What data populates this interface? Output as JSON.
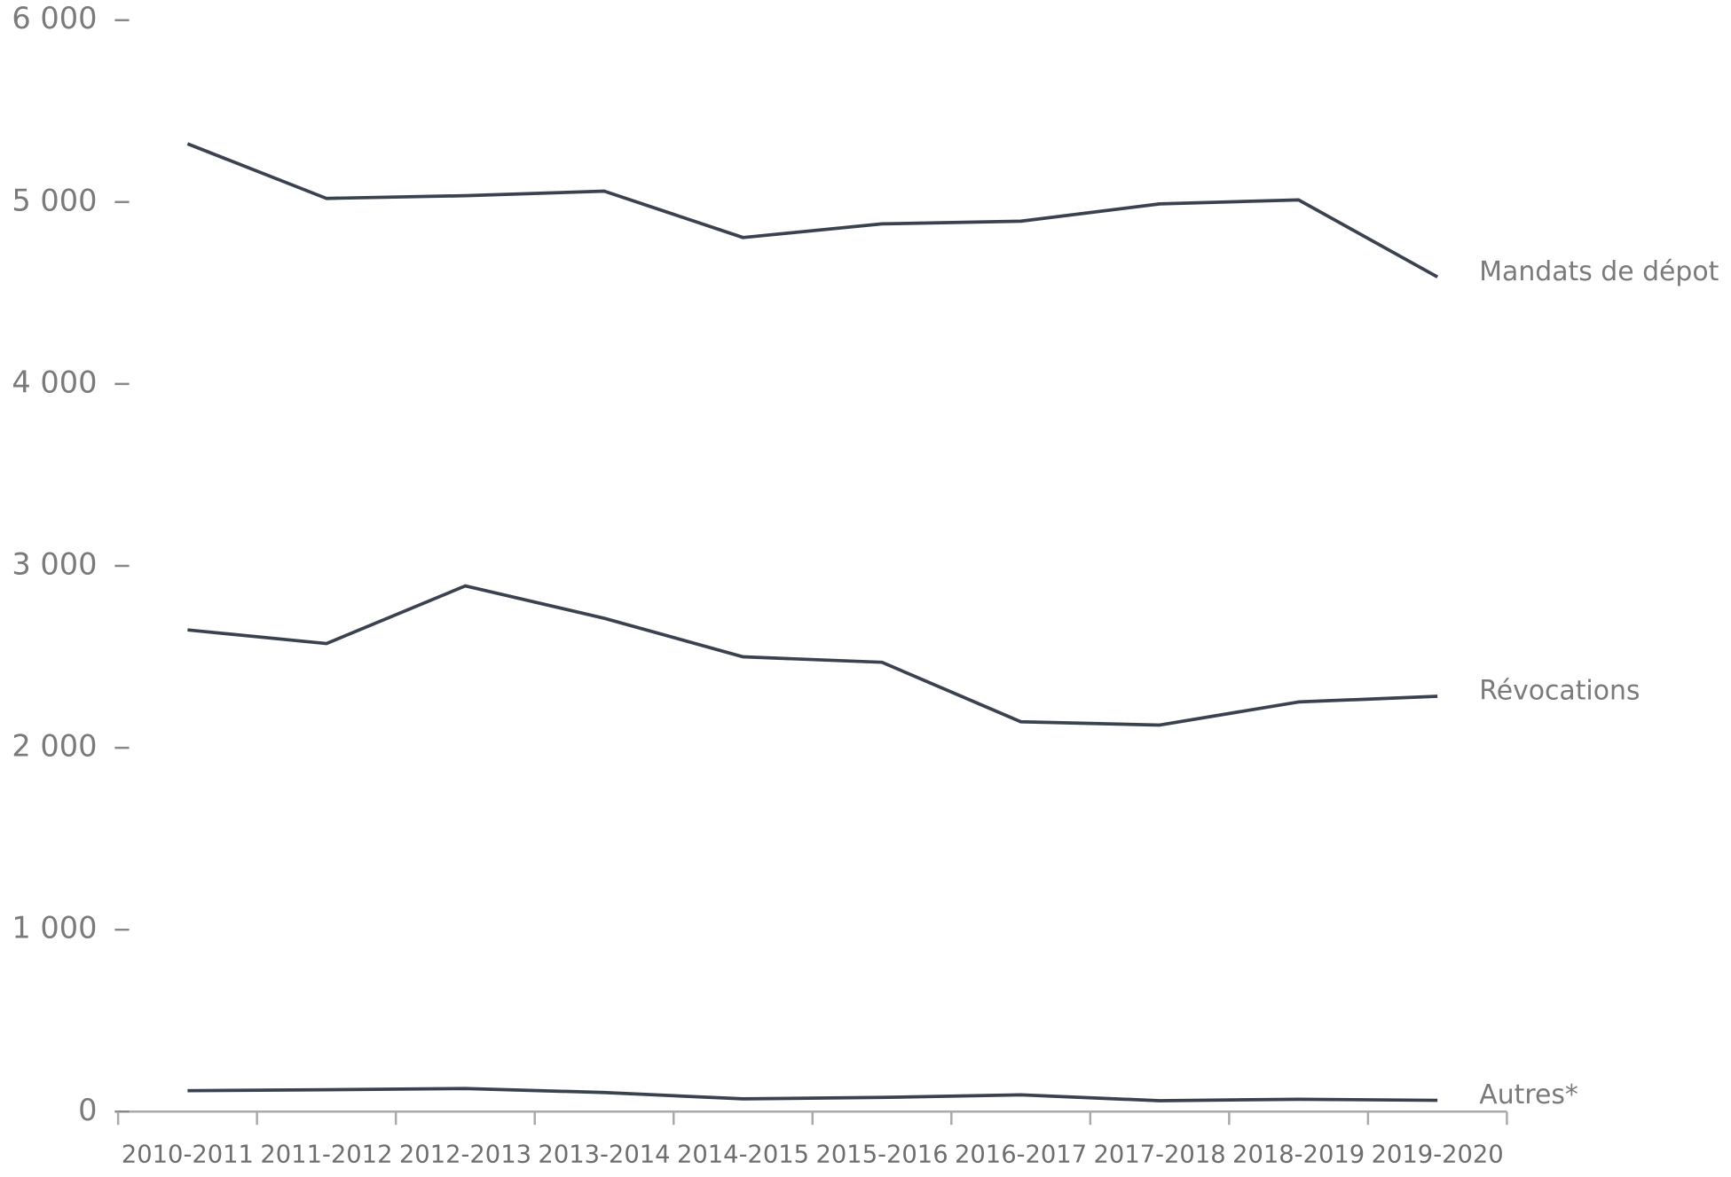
{
  "chart_data": {
    "type": "line",
    "categories": [
      "2010-2011",
      "2011-2012",
      "2012-2013",
      "2013-2014",
      "2014-2015",
      "2015-2016",
      "2016-2017",
      "2017-2018",
      "2018-2019",
      "2019-2020"
    ],
    "series": [
      {
        "name": "Mandats de dépot",
        "color": "#3a4250",
        "values": [
          5320,
          5020,
          5035,
          5060,
          4805,
          4880,
          4895,
          4990,
          5012,
          4588
        ]
      },
      {
        "name": "Révocations",
        "color": "#3a4250",
        "values": [
          2648,
          2573,
          2890,
          2712,
          2500,
          2470,
          2143,
          2125,
          2252,
          2283
        ]
      },
      {
        "name": "Autres*",
        "color": "#3a4250",
        "values": [
          115,
          120,
          127,
          105,
          70,
          78,
          92,
          60,
          68,
          62
        ]
      }
    ],
    "ylim": [
      0,
      6000
    ],
    "yticks": [
      0,
      {
        "value": 1000,
        "label": "1 000"
      },
      {
        "value": 2000,
        "label": "2 000"
      },
      {
        "value": 3000,
        "label": "3 000"
      },
      {
        "value": 4000,
        "label": "4 000"
      },
      {
        "value": 5000,
        "label": "5 000"
      },
      {
        "value": 6000,
        "label": "6 000"
      }
    ]
  }
}
